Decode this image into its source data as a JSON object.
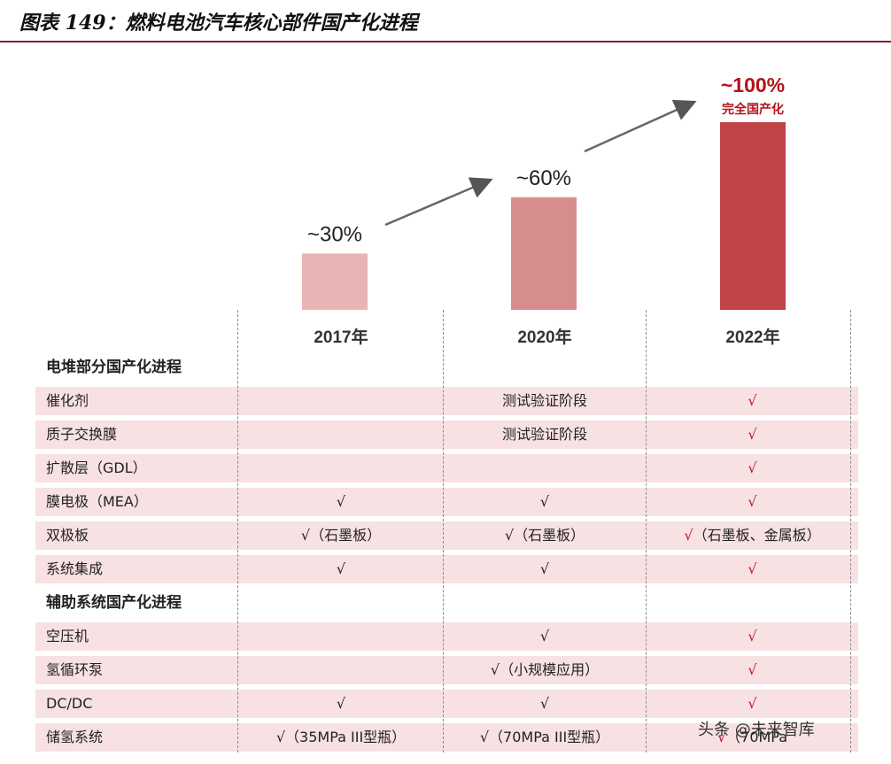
{
  "title": "图表 149：燃料电池汽车核心部件国产化进程",
  "chart_data": {
    "type": "bar",
    "categories": [
      "2017年",
      "2020年",
      "2022年"
    ],
    "values": [
      30,
      60,
      100
    ],
    "data_labels": [
      "~30%",
      "~60%",
      "~100%"
    ],
    "annotation": "完全国产化",
    "colors": [
      "#e8b4b4",
      "#d88d8d",
      "#c04448"
    ],
    "ylim": [
      0,
      100
    ],
    "grid": false
  },
  "table": {
    "sections": [
      {
        "title": "电堆部分国产化进程",
        "rows": [
          {
            "label": "催化剂",
            "c2017": "",
            "c2020": "测试验证阶段",
            "c2022": "√"
          },
          {
            "label": "质子交换膜",
            "c2017": "",
            "c2020": "测试验证阶段",
            "c2022": "√"
          },
          {
            "label": "扩散层（GDL）",
            "c2017": "",
            "c2020": "",
            "c2022": "√"
          },
          {
            "label": "膜电极（MEA）",
            "c2017": "√",
            "c2020": "√",
            "c2022": "√"
          },
          {
            "label": "双极板",
            "c2017": "√（石墨板）",
            "c2020": "√（石墨板）",
            "c2022": "√（石墨板、金属板）"
          },
          {
            "label": "系统集成",
            "c2017": "√",
            "c2020": "√",
            "c2022": "√"
          }
        ]
      },
      {
        "title": "辅助系统国产化进程",
        "rows": [
          {
            "label": "空压机",
            "c2017": "",
            "c2020": "√",
            "c2022": "√"
          },
          {
            "label": "氢循环泵",
            "c2017": "",
            "c2020": "√（小规模应用）",
            "c2022": "√"
          },
          {
            "label": "DC/DC",
            "c2017": "√",
            "c2020": "√",
            "c2022": "√"
          },
          {
            "label": "储氢系统",
            "c2017": "√（35MPa III型瓶）",
            "c2020": "√（70MPa III型瓶）",
            "c2022": "√（70MPa"
          }
        ]
      }
    ]
  },
  "watermark": "头条 @未来智库"
}
